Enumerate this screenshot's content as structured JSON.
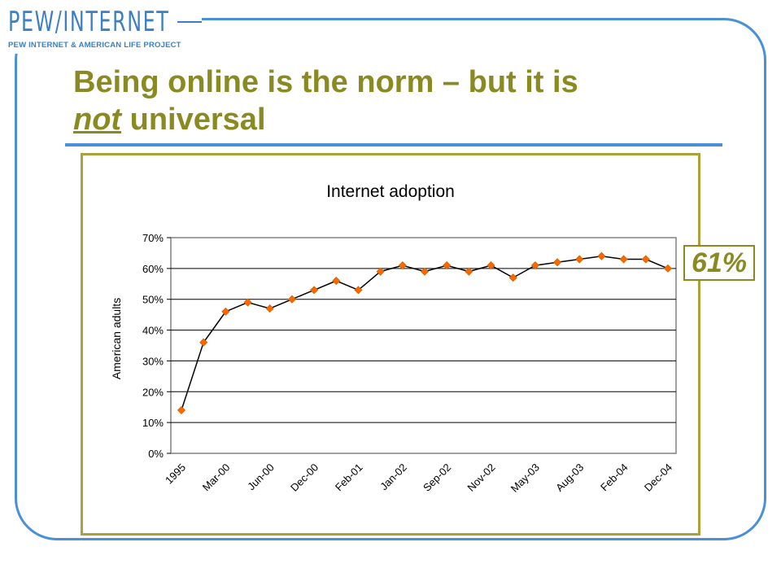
{
  "logo": {
    "main": "PEW/INTERNET",
    "sub": "PEW INTERNET & AMERICAN LIFE PROJECT"
  },
  "slide": {
    "title_part1": "Being online is the norm – but it is",
    "title_em": "not",
    "title_part2": " universal"
  },
  "callout": {
    "text": "61%"
  },
  "colors": {
    "frame": "#4a90d9",
    "title": "#8a8a23",
    "line": "#000000",
    "marker_fill": "#ff6600",
    "marker_stroke": "#cc6600"
  },
  "chart_data": {
    "type": "line",
    "title": "Internet adoption",
    "xlabel": "",
    "ylabel": "American adults",
    "ylim": [
      0,
      70
    ],
    "yticks": [
      "0%",
      "10%",
      "20%",
      "30%",
      "40%",
      "50%",
      "60%",
      "70%"
    ],
    "grid": true,
    "x_tick_labels": [
      "1995",
      "Mar-00",
      "Jun-00",
      "Dec-00",
      "Feb-01",
      "Jan-02",
      "Sep-02",
      "Nov-02",
      "May-03",
      "Aug-03",
      "Feb-04",
      "Dec-04"
    ],
    "series": [
      {
        "values": [
          14,
          36,
          46,
          49,
          47,
          50,
          53,
          56,
          53,
          59,
          61,
          59,
          61,
          59,
          61,
          57,
          61,
          62,
          63,
          64,
          63,
          63,
          60
        ]
      }
    ]
  }
}
